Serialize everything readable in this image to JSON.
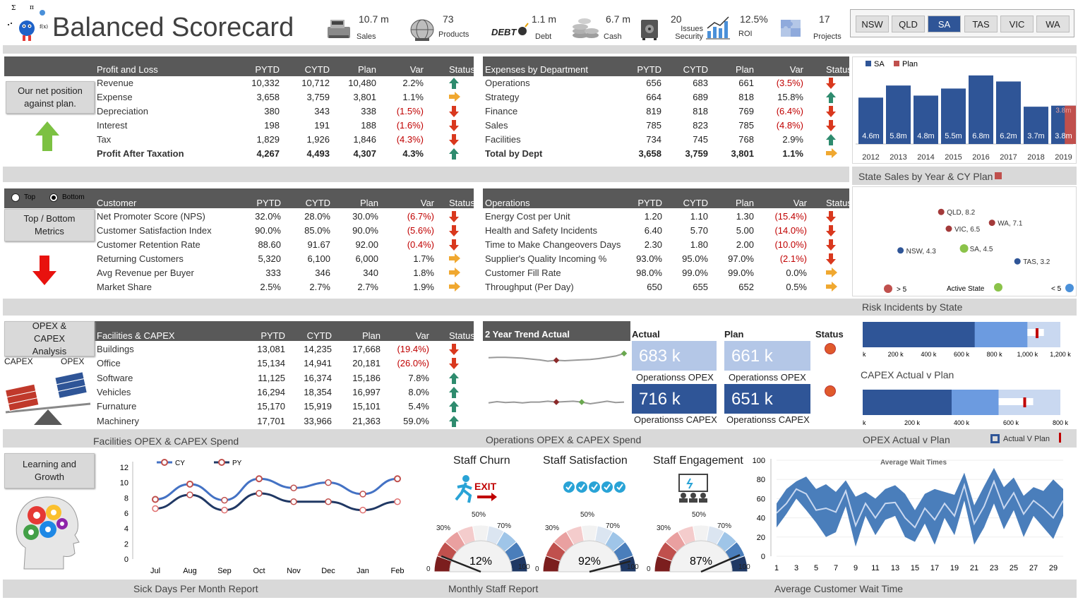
{
  "header": {
    "title": "Balanced Scorecard",
    "kpis": [
      {
        "value": "10.7 m",
        "label": "Sales",
        "icon": "cash-register-icon"
      },
      {
        "value": "73",
        "label": "Products",
        "icon": "globe-icon"
      },
      {
        "value": "1.1 m",
        "label": "Debt",
        "icon": "debt-icon"
      },
      {
        "value": "6.7 m",
        "label": "Cash",
        "icon": "coins-icon"
      },
      {
        "value": "20",
        "label": "Issues Security",
        "icon": "safe-icon"
      },
      {
        "value": "12.5%",
        "label": "ROI",
        "icon": "roi-chart-icon"
      },
      {
        "value": "17",
        "label": "Projects",
        "icon": "puzzle-icon"
      }
    ],
    "states": [
      "NSW",
      "QLD",
      "SA",
      "TAS",
      "VIC",
      "WA"
    ],
    "active_state": "SA"
  },
  "section1": {
    "button": "Our net position against plan.",
    "pl": {
      "headers": [
        "Profit and Loss",
        "PYTD",
        "CYTD",
        "Plan",
        "Var",
        "Status"
      ],
      "rows": [
        {
          "name": "Revenue",
          "pytd": "10,332",
          "cytd": "10,712",
          "plan": "10,480",
          "var": "2.2%",
          "status": "up"
        },
        {
          "name": "Expense",
          "pytd": "3,658",
          "cytd": "3,759",
          "plan": "3,801",
          "var": "1.1%",
          "status": "right"
        },
        {
          "name": "Depreciation",
          "pytd": "380",
          "cytd": "343",
          "plan": "338",
          "var": "(1.5%)",
          "status": "down"
        },
        {
          "name": "Interest",
          "pytd": "198",
          "cytd": "191",
          "plan": "188",
          "var": "(1.6%)",
          "status": "down"
        },
        {
          "name": "Tax",
          "pytd": "1,829",
          "cytd": "1,926",
          "plan": "1,846",
          "var": "(4.3%)",
          "status": "down"
        },
        {
          "name": "Profit After Taxation",
          "pytd": "4,267",
          "cytd": "4,493",
          "plan": "4,307",
          "var": "4.3%",
          "status": "up",
          "bold": true
        }
      ]
    },
    "exp": {
      "headers": [
        "Expenses by Department",
        "PYTD",
        "CYTD",
        "Plan",
        "Var",
        "Status"
      ],
      "rows": [
        {
          "name": "Operations",
          "pytd": "656",
          "cytd": "683",
          "plan": "661",
          "var": "(3.5%)",
          "status": "down"
        },
        {
          "name": "Strategy",
          "pytd": "664",
          "cytd": "689",
          "plan": "818",
          "var": "15.8%",
          "status": "up"
        },
        {
          "name": "Finance",
          "pytd": "819",
          "cytd": "818",
          "plan": "769",
          "var": "(6.4%)",
          "status": "down"
        },
        {
          "name": "Sales",
          "pytd": "785",
          "cytd": "823",
          "plan": "785",
          "var": "(4.8%)",
          "status": "down"
        },
        {
          "name": "Facilities",
          "pytd": "734",
          "cytd": "745",
          "plan": "768",
          "var": "2.9%",
          "status": "up"
        },
        {
          "name": "Total by Dept",
          "pytd": "3,658",
          "cytd": "3,759",
          "plan": "3,801",
          "var": "1.1%",
          "status": "right",
          "bold": true
        }
      ]
    },
    "chart_title": "State Sales by Year & CY Plan"
  },
  "section2": {
    "button": "Top / Bottom Metrics",
    "radio_top": "Top",
    "radio_bottom": "Bottom",
    "cust": {
      "headers": [
        "Customer",
        "PYTD",
        "CYTD",
        "Plan",
        "Var",
        "Status"
      ],
      "rows": [
        {
          "name": "Net Promoter Score (NPS)",
          "pytd": "32.0%",
          "cytd": "28.0%",
          "plan": "30.0%",
          "var": "(6.7%)",
          "status": "down"
        },
        {
          "name": "Customer Satisfaction Index",
          "pytd": "90.0%",
          "cytd": "85.0%",
          "plan": "90.0%",
          "var": "(5.6%)",
          "status": "down"
        },
        {
          "name": "Customer Retention Rate",
          "pytd": "88.60",
          "cytd": "91.67",
          "plan": "92.00",
          "var": "(0.4%)",
          "status": "down"
        },
        {
          "name": "Returning Customers",
          "pytd": "5,320",
          "cytd": "6,100",
          "plan": "6,000",
          "var": "1.7%",
          "status": "right"
        },
        {
          "name": "Avg Revenue per Buyer",
          "pytd": "333",
          "cytd": "346",
          "plan": "340",
          "var": "1.8%",
          "status": "right"
        },
        {
          "name": "Market Share",
          "pytd": "2.5%",
          "cytd": "2.7%",
          "plan": "2.7%",
          "var": "1.9%",
          "status": "right"
        }
      ]
    },
    "ops": {
      "headers": [
        "Operations",
        "PYTD",
        "CYTD",
        "Plan",
        "Var",
        "Status"
      ],
      "rows": [
        {
          "name": "Energy Cost per Unit",
          "pytd": "1.20",
          "cytd": "1.10",
          "plan": "1.30",
          "var": "(15.4%)",
          "status": "down"
        },
        {
          "name": "Health and Safety Incidents",
          "pytd": "6.40",
          "cytd": "5.70",
          "plan": "5.00",
          "var": "(14.0%)",
          "status": "down"
        },
        {
          "name": "Time to Make Changeovers Days",
          "pytd": "2.30",
          "cytd": "1.80",
          "plan": "2.00",
          "var": "(10.0%)",
          "status": "down"
        },
        {
          "name": "Supplier's Quality Incoming %",
          "pytd": "93.0%",
          "cytd": "95.0%",
          "plan": "97.0%",
          "var": "(2.1%)",
          "status": "down"
        },
        {
          "name": "Customer Fill Rate",
          "pytd": "98.0%",
          "cytd": "99.0%",
          "plan": "99.0%",
          "var": "0.0%",
          "status": "right"
        },
        {
          "name": "Throughput (Per Day)",
          "pytd": "650",
          "cytd": "655",
          "plan": "652",
          "var": "0.5%",
          "status": "right"
        }
      ]
    },
    "scatter_title": "Risk Incidents by State",
    "legend": {
      "gt": "> 5",
      "active": "Active State",
      "lt": "< 5"
    }
  },
  "section3": {
    "button": "OPEX & CAPEX Analysis",
    "capex_label": "CAPEX",
    "opex_label": "OPEX",
    "fac": {
      "headers": [
        "Facilities & CAPEX",
        "PYTD",
        "CYTD",
        "Plan",
        "Var",
        "Status"
      ],
      "rows": [
        {
          "name": "Buildings",
          "pytd": "13,081",
          "cytd": "14,235",
          "plan": "17,668",
          "var": "(19.4%)",
          "status": "down"
        },
        {
          "name": "Office",
          "pytd": "15,134",
          "cytd": "14,941",
          "plan": "20,181",
          "var": "(26.0%)",
          "status": "down"
        },
        {
          "name": "Software",
          "pytd": "11,125",
          "cytd": "16,374",
          "plan": "15,186",
          "var": "7.8%",
          "status": "up"
        },
        {
          "name": "Vehicles",
          "pytd": "16,294",
          "cytd": "18,354",
          "plan": "16,997",
          "var": "8.0%",
          "status": "up"
        },
        {
          "name": "Furnature",
          "pytd": "15,170",
          "cytd": "15,919",
          "plan": "15,101",
          "var": "5.4%",
          "status": "up"
        },
        {
          "name": "Machinery",
          "pytd": "17,701",
          "cytd": "33,966",
          "plan": "21,363",
          "var": "59.0%",
          "status": "up"
        }
      ]
    },
    "trend_title": "2 Year Trend Actual",
    "actual_hdr": "Actual",
    "plan_hdr": "Plan",
    "status_hdr": "Status",
    "tiles": [
      {
        "value": "683 k",
        "label": "Operationss OPEX"
      },
      {
        "value": "661 k",
        "label": "Operationss OPEX"
      },
      {
        "value": "716 k",
        "label": "Operationss CAPEX"
      },
      {
        "value": "651 k",
        "label": "Operationss CAPEX"
      }
    ],
    "capex_title": "CAPEX Actual v Plan",
    "bullet1_ticks": [
      "k",
      "200 k",
      "400 k",
      "600 k",
      "800 k",
      "1,000 k",
      "1,200 k"
    ],
    "bullet2_ticks": [
      "k",
      "200 k",
      "400 k",
      "600 k",
      "800 k"
    ],
    "footer_left": "Facilities OPEX & CAPEX Spend",
    "footer_mid": "Operations OPEX & CAPEX Spend",
    "footer_right": "OPEX Actual v Plan",
    "legend_avp": "Actual V Plan"
  },
  "section4": {
    "button": "Learning and Growth",
    "footer_left": "Sick Days Per Month Report",
    "footer_mid": "Monthly Staff Report",
    "footer_right": "Average Customer Wait Time",
    "gauges": [
      {
        "title": "Staff Churn",
        "value": "12%",
        "pct": 12,
        "icon": "exit-runner-icon",
        "exit_text": "EXIT"
      },
      {
        "title": "Staff Satisfaction",
        "value": "92%",
        "pct": 92,
        "icon": "checkmarks-icon"
      },
      {
        "title": "Staff Engagement",
        "value": "87%",
        "pct": 87,
        "icon": "presentation-icon"
      }
    ],
    "gauge_ticks": [
      "0",
      "30%",
      "50%",
      "70%",
      "100"
    ],
    "wait_title": "Average Wait Times"
  },
  "chart_data": [
    {
      "type": "bar",
      "categories": [
        "2012",
        "2013",
        "2014",
        "2015",
        "2016",
        "2017",
        "2018",
        "2019"
      ],
      "series": [
        {
          "name": "SA",
          "values": [
            4.6,
            5.8,
            4.8,
            5.5,
            6.8,
            6.2,
            3.7,
            3.8
          ],
          "labels": [
            "4.6m",
            "5.8m",
            "4.8m",
            "5.5m",
            "6.8m",
            "6.2m",
            "3.7m",
            "3.8m"
          ],
          "color": "#2f5597"
        },
        {
          "name": "Plan",
          "values": [
            null,
            null,
            null,
            null,
            null,
            null,
            null,
            3.8
          ],
          "labels": [
            "",
            "",
            "",
            "",
            "",
            "",
            "",
            "3.8m"
          ],
          "color": "#c0504d"
        }
      ],
      "ylim": [
        0,
        7
      ]
    },
    {
      "type": "scatter",
      "points": [
        {
          "label": "QLD, 8.2",
          "x": 3.2,
          "y": 8.2,
          "color": "#a33a3a"
        },
        {
          "label": "VIC, 6.5",
          "x": 3.5,
          "y": 6.5,
          "color": "#a33a3a"
        },
        {
          "label": "WA, 7.1",
          "x": 5.2,
          "y": 7.1,
          "color": "#a33a3a"
        },
        {
          "label": "NSW, 4.3",
          "x": 1.6,
          "y": 4.3,
          "color": "#2f5597"
        },
        {
          "label": "SA, 4.5",
          "x": 4.1,
          "y": 4.5,
          "color": "#8bc34a"
        },
        {
          "label": "TAS, 3.2",
          "x": 6.2,
          "y": 3.2,
          "color": "#2f5597"
        }
      ]
    },
    {
      "type": "line",
      "categories": [
        "Jul",
        "Aug",
        "Sep",
        "Oct",
        "Nov",
        "Dec",
        "Jan",
        "Feb"
      ],
      "series": [
        {
          "name": "CY",
          "values": [
            7.8,
            9.8,
            7.7,
            10.5,
            9.3,
            10.0,
            8.5,
            10.5
          ],
          "color": "#4472c4"
        },
        {
          "name": "PY",
          "values": [
            6.6,
            8.4,
            6.4,
            8.6,
            7.5,
            7.5,
            6.4,
            7.5
          ],
          "color": "#203864"
        }
      ],
      "yticks": [
        "12",
        "10",
        "8",
        "6",
        "4",
        "2",
        "0"
      ],
      "ylim": [
        0,
        12
      ]
    },
    {
      "type": "area",
      "title": "Average Wait Times",
      "x": [
        1,
        2,
        3,
        4,
        5,
        6,
        7,
        8,
        9,
        10,
        11,
        12,
        13,
        14,
        15,
        16,
        17,
        18,
        19,
        20,
        21,
        22,
        23,
        24,
        25,
        26,
        27,
        28,
        29,
        30
      ],
      "high": [
        55,
        70,
        78,
        83,
        70,
        75,
        67,
        79,
        62,
        67,
        60,
        70,
        74,
        65,
        48,
        65,
        70,
        67,
        64,
        87,
        53,
        73,
        92,
        72,
        82,
        63,
        72,
        68,
        80,
        70
      ],
      "low": [
        30,
        44,
        60,
        48,
        35,
        20,
        25,
        52,
        10,
        42,
        22,
        38,
        42,
        20,
        15,
        34,
        12,
        40,
        22,
        58,
        12,
        30,
        55,
        28,
        48,
        20,
        42,
        30,
        18,
        42
      ],
      "mid": [
        45,
        55,
        70,
        65,
        48,
        50,
        46,
        68,
        32,
        55,
        40,
        55,
        56,
        40,
        30,
        50,
        38,
        55,
        42,
        74,
        34,
        52,
        78,
        50,
        66,
        44,
        58,
        50,
        40,
        58
      ],
      "yticks": [
        "100",
        "80",
        "60",
        "40",
        "20",
        "0"
      ],
      "xticks": [
        "1",
        "3",
        "5",
        "7",
        "9",
        "11",
        "13",
        "15",
        "17",
        "19",
        "21",
        "23",
        "25",
        "27",
        "29"
      ],
      "ylim": [
        0,
        100
      ]
    },
    {
      "type": "bar",
      "name": "trend-sparklines",
      "series": [
        {
          "name": "OPEX",
          "values": [
            6.2,
            6.3,
            6.3,
            6.2,
            6.1,
            5.9,
            5.7,
            5.4,
            5.6,
            5.5,
            5.6,
            5.7,
            5.8,
            6.0,
            6.3,
            6.6,
            7.2
          ]
        },
        {
          "name": "CAPEX",
          "values": [
            4.2,
            4.5,
            4.3,
            4.4,
            4.2,
            4.4,
            4.4,
            4.6,
            4.4,
            4.5,
            4.6,
            4.4,
            4.0,
            4.3,
            4.6,
            4.3,
            4.4
          ]
        }
      ]
    },
    {
      "type": "bar",
      "name": "bullet-charts",
      "series": [
        {
          "name": "OPEX Actual",
          "values": [
            1100,
            1030
          ],
          "target": 1050,
          "bands": [
            680,
            1000,
            1200
          ]
        },
        {
          "name": "CAPEX Actual",
          "values": [
            690,
            690
          ],
          "target": 650,
          "bands": [
            360,
            550,
            800
          ]
        }
      ]
    }
  ]
}
